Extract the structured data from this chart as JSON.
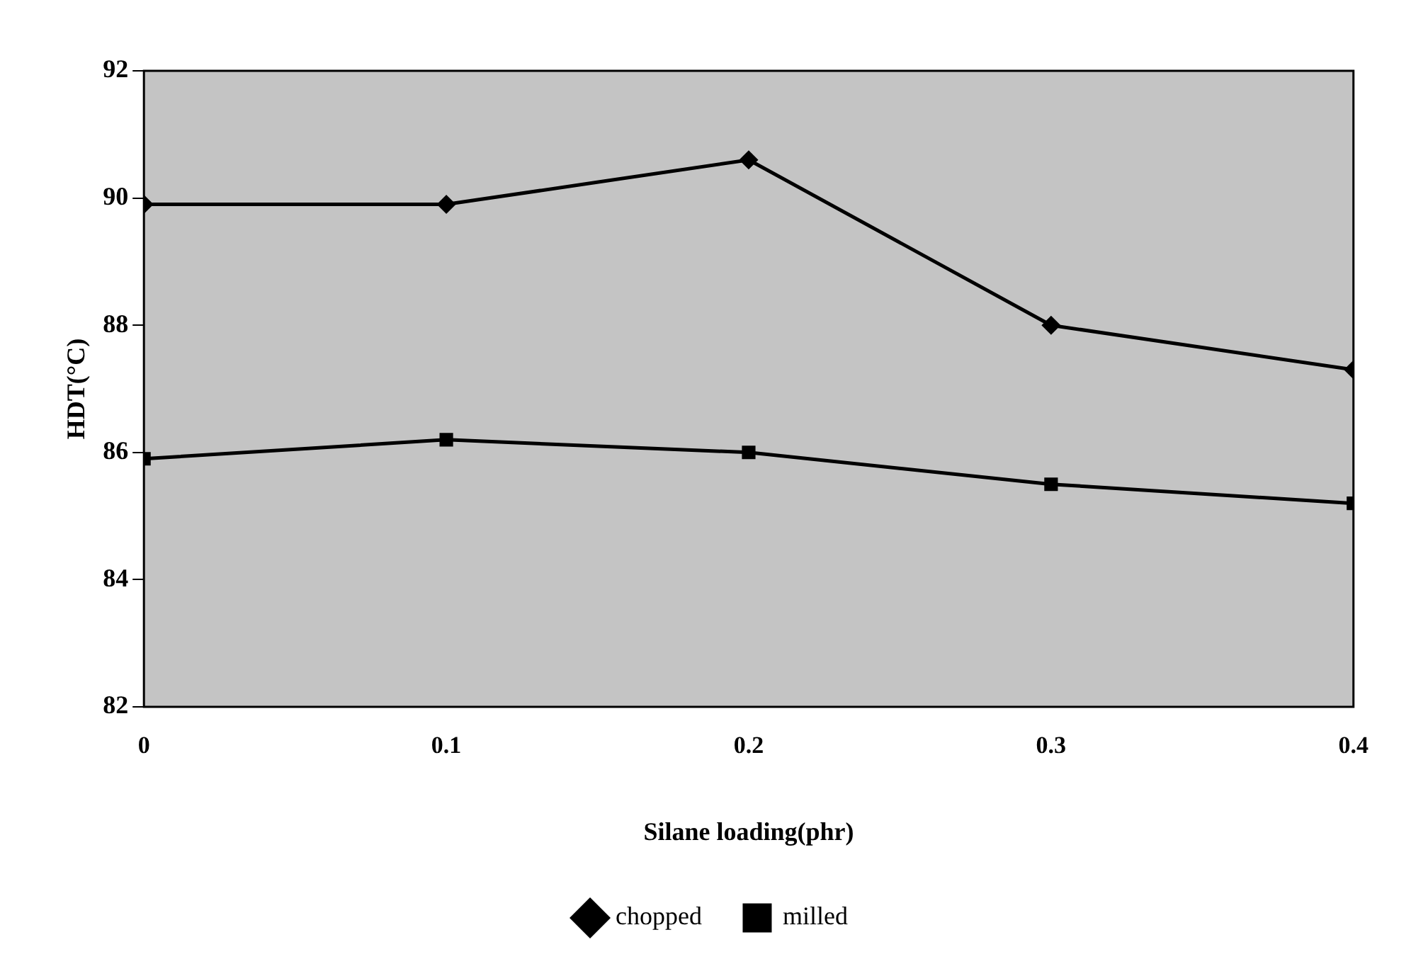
{
  "chart_data": {
    "type": "line",
    "xlabel": "Silane loading(phr)",
    "ylabel": "HDT(°C)",
    "x": [
      0,
      0.1,
      0.2,
      0.3,
      0.4
    ],
    "xlim": [
      0,
      0.4
    ],
    "xticks": [
      0,
      0.1,
      0.2,
      0.3,
      0.4
    ],
    "ylim": [
      82,
      92
    ],
    "yticks": [
      82,
      84,
      86,
      88,
      90,
      92
    ],
    "grid": false,
    "legend": "bottom",
    "line_style": "solid",
    "series": [
      {
        "name": "chopped",
        "color": "#000000",
        "marker": "diamond",
        "values": [
          89.9,
          89.9,
          90.6,
          88.0,
          87.3
        ]
      },
      {
        "name": "milled",
        "color": "#000000",
        "marker": "square",
        "values": [
          85.9,
          86.2,
          86.0,
          85.5,
          85.2
        ]
      }
    ]
  }
}
